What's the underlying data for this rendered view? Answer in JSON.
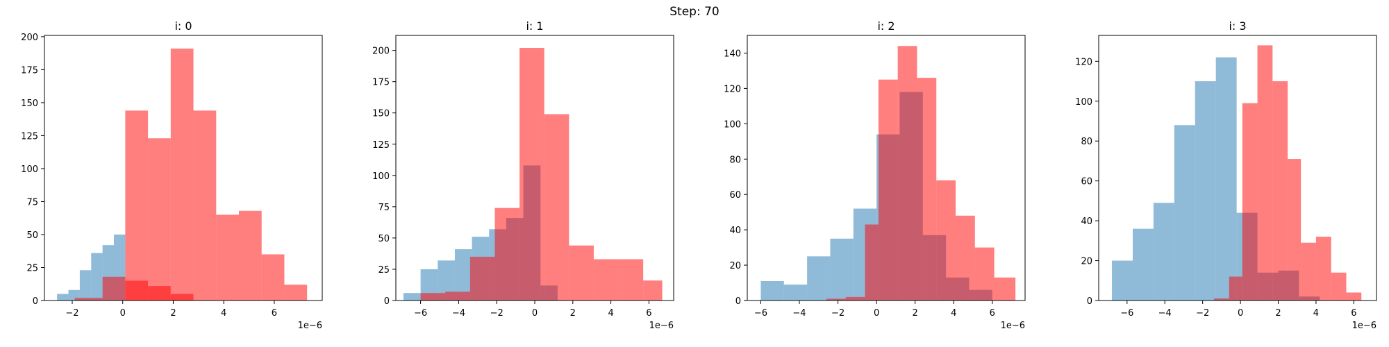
{
  "figure": {
    "title": "Step: 70"
  },
  "colors": {
    "blue": "#1f77b4",
    "red": "#ff0000"
  },
  "chart_data": [
    {
      "type": "bar",
      "title": "i: 0",
      "offset_label": "1e−6",
      "xlim": [
        -3.1,
        7.9
      ],
      "ylim": [
        0,
        201
      ],
      "xticks": [
        -2,
        0,
        2,
        4,
        6
      ],
      "yticks": [
        0,
        25,
        50,
        75,
        100,
        125,
        150,
        175,
        200
      ],
      "series": [
        {
          "color": "blue",
          "opacity": 0.5,
          "edges": [
            -2.6,
            -2.15,
            -1.7,
            -1.25,
            -0.8,
            -0.35,
            0.1
          ],
          "counts": [
            5,
            8,
            23,
            36,
            42,
            50
          ]
        },
        {
          "color": "red",
          "opacity": 0.5,
          "edges": [
            -1.9,
            -0.8,
            0.1,
            1.0,
            1.9,
            2.8,
            3.7,
            4.6,
            5.5,
            6.4,
            7.3
          ],
          "counts": [
            2,
            18,
            15,
            11,
            5,
            0,
            0,
            0,
            0,
            0
          ]
        },
        {
          "color": "red",
          "opacity": 0.5,
          "edges": [
            0.1,
            1.0,
            1.9,
            2.8,
            3.7,
            4.6,
            5.5,
            6.4,
            7.3
          ],
          "counts": [
            144,
            123,
            191,
            144,
            65,
            68,
            35,
            12
          ]
        }
      ]
    },
    {
      "type": "bar",
      "title": "i: 1",
      "offset_label": "1e−6",
      "xlim": [
        -7.3,
        7.3
      ],
      "ylim": [
        0,
        212
      ],
      "xticks": [
        -6,
        -4,
        -2,
        0,
        2,
        4,
        6
      ],
      "yticks": [
        0,
        25,
        50,
        75,
        100,
        125,
        150,
        175,
        200
      ],
      "series": [
        {
          "color": "blue",
          "opacity": 0.5,
          "edges": [
            -6.9,
            -6.0,
            -5.1,
            -4.2,
            -3.3,
            -2.4,
            -1.5,
            -0.6,
            0.3,
            1.2
          ],
          "counts": [
            6,
            25,
            32,
            41,
            51,
            57,
            66,
            108,
            12
          ]
        },
        {
          "color": "red",
          "opacity": 0.5,
          "edges": [
            -6.0,
            -4.7,
            -3.4,
            -2.1,
            -0.8,
            0.5,
            1.8,
            3.1,
            4.4,
            5.7,
            6.7
          ],
          "counts": [
            6,
            7,
            35,
            74,
            202,
            149,
            44,
            33,
            33,
            16
          ]
        }
      ]
    },
    {
      "type": "bar",
      "title": "i: 2",
      "offset_label": "1e−6",
      "xlim": [
        -6.7,
        7.7
      ],
      "ylim": [
        0,
        150
      ],
      "xticks": [
        -6,
        -4,
        -2,
        0,
        2,
        4,
        6
      ],
      "yticks": [
        0,
        20,
        40,
        60,
        80,
        100,
        120,
        140
      ],
      "series": [
        {
          "color": "blue",
          "opacity": 0.5,
          "edges": [
            -6.0,
            -4.8,
            -3.6,
            -2.4,
            -1.2,
            0.0,
            1.2,
            2.4,
            3.6,
            4.8,
            6.0
          ],
          "counts": [
            11,
            9,
            25,
            35,
            52,
            94,
            118,
            37,
            13,
            6
          ]
        },
        {
          "color": "red",
          "opacity": 0.5,
          "edges": [
            -2.6,
            -1.6,
            -0.6,
            0.1,
            1.1,
            2.1,
            3.1,
            4.1,
            5.1,
            6.1,
            7.2
          ],
          "counts": [
            1,
            2,
            43,
            125,
            144,
            126,
            68,
            48,
            30,
            13
          ]
        }
      ]
    },
    {
      "type": "bar",
      "title": "i: 3",
      "offset_label": "1e−6",
      "xlim": [
        -7.5,
        7.2
      ],
      "ylim": [
        0,
        133
      ],
      "xticks": [
        -6,
        -4,
        -2,
        0,
        2,
        4,
        6
      ],
      "yticks": [
        0,
        20,
        40,
        60,
        80,
        100,
        120
      ],
      "series": [
        {
          "color": "blue",
          "opacity": 0.5,
          "edges": [
            -6.8,
            -5.7,
            -4.6,
            -3.5,
            -2.4,
            -1.3,
            -0.2,
            0.9,
            2.0,
            3.1,
            4.2
          ],
          "counts": [
            20,
            36,
            49,
            88,
            110,
            122,
            44,
            14,
            15,
            2
          ]
        },
        {
          "color": "red",
          "opacity": 0.5,
          "edges": [
            -1.4,
            -0.6,
            0.1,
            0.9,
            1.7,
            2.5,
            3.2,
            4.0,
            4.8,
            5.6,
            6.4
          ],
          "counts": [
            1,
            12,
            99,
            128,
            110,
            71,
            29,
            32,
            14,
            4
          ]
        }
      ]
    }
  ]
}
